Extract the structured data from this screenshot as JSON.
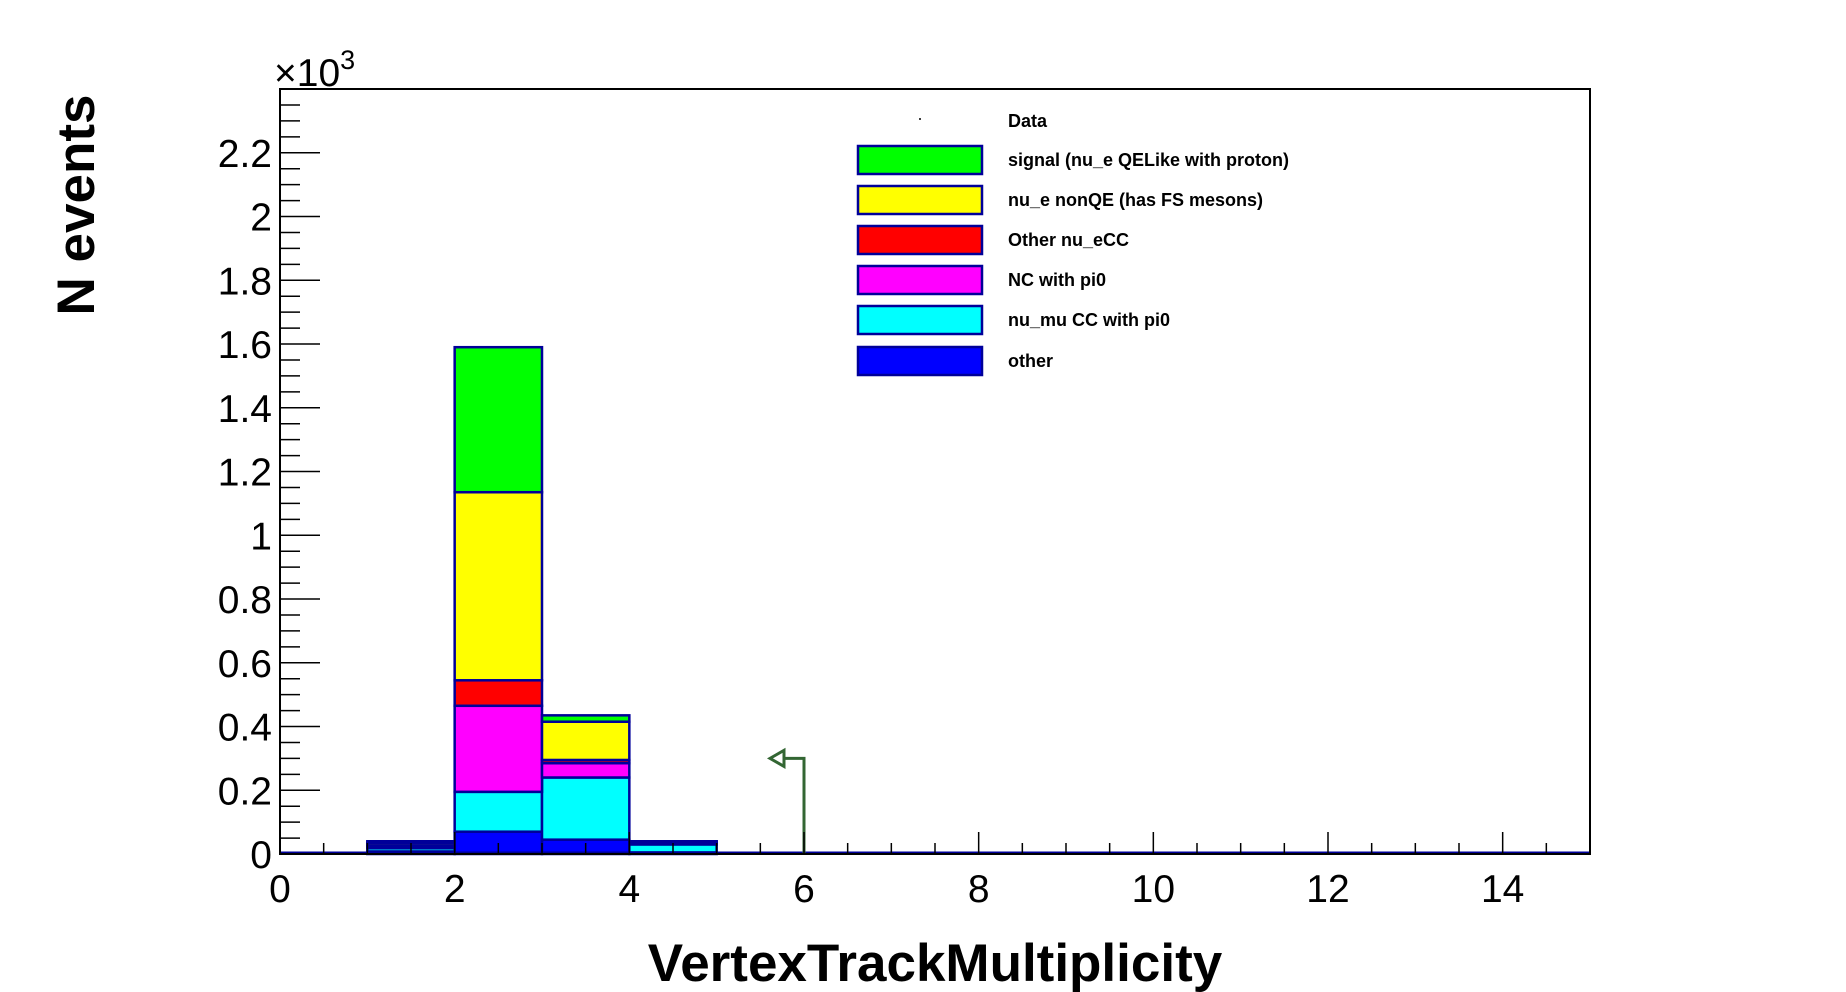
{
  "chart_data": {
    "type": "bar",
    "stacked": true,
    "xlabel": "VertexTrackMultiplicity",
    "ylabel": "N events",
    "y_scale_exponent": "×10",
    "y_scale_power": "3",
    "xlim": [
      0,
      15
    ],
    "ylim": [
      0,
      2.4
    ],
    "x_ticks": [
      "0",
      "2",
      "4",
      "6",
      "8",
      "10",
      "12",
      "14"
    ],
    "y_ticks": [
      "0",
      "0.2",
      "0.4",
      "0.6",
      "0.8",
      "1",
      "1.2",
      "1.4",
      "1.6",
      "1.8",
      "2",
      "2.2"
    ],
    "bin_edges": [
      1,
      2,
      3,
      4,
      5
    ],
    "series": [
      {
        "name": "other",
        "color": "#0000ff",
        "values": [
          0.008,
          0.07,
          0.045,
          0.005
        ]
      },
      {
        "name": "nu_mu CC with pi0",
        "color": "#00ffff",
        "values": [
          0.01,
          0.125,
          0.195,
          0.025
        ]
      },
      {
        "name": "NC with pi0",
        "color": "#ff00ff",
        "values": [
          0.006,
          0.27,
          0.045,
          0.003
        ]
      },
      {
        "name": "Other nu_eCC",
        "color": "#ff0000",
        "values": [
          0.003,
          0.08,
          0.01,
          0.001
        ]
      },
      {
        "name": "nu_e nonQE (has FS mesons)",
        "color": "#ffff00",
        "values": [
          0.008,
          0.59,
          0.12,
          0.005
        ]
      },
      {
        "name": "signal (nu_e QELike with proton)",
        "color": "#00ff00",
        "values": [
          0.005,
          0.455,
          0.02,
          0.001
        ]
      }
    ],
    "data_series": {
      "name": "Data"
    },
    "cut_arrow": {
      "x": 6,
      "y_top": 0.3,
      "direction": "left",
      "color": "#336633"
    },
    "legend": {
      "placement": "top-right",
      "order": [
        "Data",
        "signal (nu_e QELike with proton)",
        "nu_e nonQE (has FS mesons)",
        "Other nu_eCC",
        "NC with pi0",
        "nu_mu CC with pi0",
        "other"
      ]
    }
  }
}
